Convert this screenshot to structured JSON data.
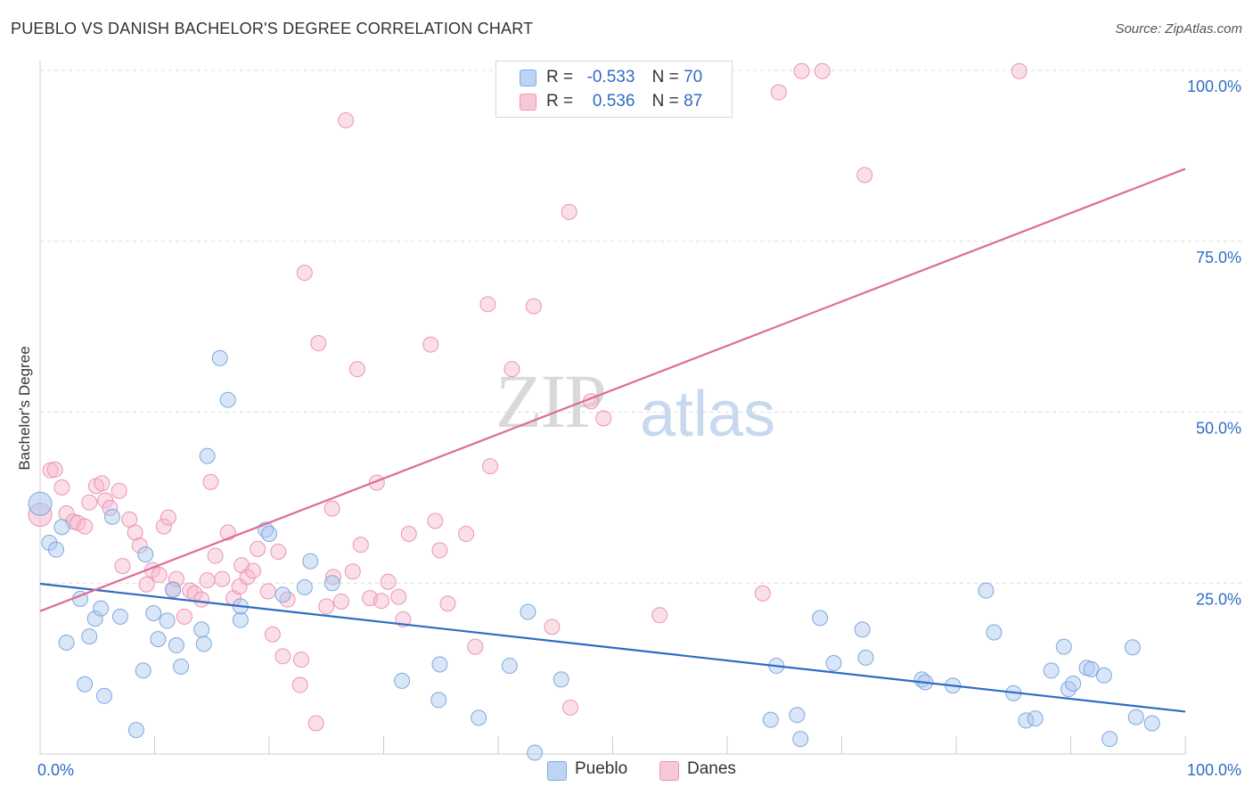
{
  "title": "PUEBLO VS DANISH BACHELOR'S DEGREE CORRELATION CHART",
  "source": "Source: ZipAtlas.com",
  "watermark": {
    "zip": "ZIP",
    "atlas": "atlas"
  },
  "colors": {
    "blue": "#2f6cc4",
    "blue_fill": "#a9c8f0",
    "pink": "#e06b95",
    "pink_fill": "#f6b8cc",
    "tick": "#2f6cc4"
  },
  "legend_top": {
    "rows": [
      {
        "r_label": "R =",
        "r_value": "-0.533",
        "n_label": "N =",
        "n_value": "70"
      },
      {
        "r_label": "R =",
        "r_value": "0.536",
        "n_label": "N =",
        "n_value": "87"
      }
    ]
  },
  "chart_data": {
    "type": "scatter",
    "title": "PUEBLO VS DANISH BACHELOR'S DEGREE CORRELATION CHART",
    "xlabel": "",
    "ylabel": "Bachelor's Degree",
    "xlim": [
      0,
      100
    ],
    "ylim": [
      0,
      100
    ],
    "x_tick_labels": {
      "min": "0.0%",
      "max": "100.0%"
    },
    "y_ticks": [
      25,
      50,
      75,
      100
    ],
    "y_tick_labels": [
      "25.0%",
      "50.0%",
      "75.0%",
      "100.0%"
    ],
    "legend": [
      "Pueblo",
      "Danes"
    ],
    "series": [
      {
        "name": "Pueblo",
        "trend": {
          "x": [
            0,
            100
          ],
          "y": [
            24.9,
            6.2
          ]
        },
        "points": [
          [
            0.0,
            36.6
          ],
          [
            0.8,
            30.9
          ],
          [
            1.4,
            29.9
          ],
          [
            1.9,
            33.2
          ],
          [
            2.3,
            16.3
          ],
          [
            3.5,
            22.7
          ],
          [
            3.9,
            10.2
          ],
          [
            4.3,
            17.2
          ],
          [
            4.8,
            19.8
          ],
          [
            5.3,
            21.3
          ],
          [
            5.6,
            8.5
          ],
          [
            6.3,
            34.7
          ],
          [
            7.0,
            20.1
          ],
          [
            8.4,
            3.5
          ],
          [
            9.0,
            12.2
          ],
          [
            9.2,
            29.2
          ],
          [
            9.9,
            20.6
          ],
          [
            10.3,
            16.8
          ],
          [
            11.1,
            19.5
          ],
          [
            11.6,
            24.0
          ],
          [
            11.9,
            15.9
          ],
          [
            12.3,
            12.8
          ],
          [
            14.1,
            18.2
          ],
          [
            14.3,
            16.1
          ],
          [
            14.6,
            43.6
          ],
          [
            15.7,
            57.9
          ],
          [
            16.4,
            51.8
          ],
          [
            17.5,
            19.6
          ],
          [
            17.5,
            21.6
          ],
          [
            19.7,
            32.8
          ],
          [
            20.0,
            32.2
          ],
          [
            21.2,
            23.3
          ],
          [
            23.1,
            24.4
          ],
          [
            23.6,
            28.2
          ],
          [
            25.5,
            25.0
          ],
          [
            31.6,
            10.7
          ],
          [
            34.8,
            7.9
          ],
          [
            34.9,
            13.1
          ],
          [
            38.3,
            5.3
          ],
          [
            41.0,
            12.9
          ],
          [
            42.6,
            20.8
          ],
          [
            43.2,
            0.2
          ],
          [
            45.5,
            10.9
          ],
          [
            63.8,
            5.0
          ],
          [
            64.3,
            12.9
          ],
          [
            66.1,
            5.7
          ],
          [
            66.4,
            2.2
          ],
          [
            68.1,
            19.9
          ],
          [
            69.3,
            13.3
          ],
          [
            71.8,
            18.2
          ],
          [
            72.1,
            14.1
          ],
          [
            77.0,
            10.9
          ],
          [
            77.3,
            10.5
          ],
          [
            79.7,
            10.0
          ],
          [
            82.6,
            23.9
          ],
          [
            83.3,
            17.8
          ],
          [
            85.0,
            8.9
          ],
          [
            86.1,
            4.9
          ],
          [
            86.9,
            5.2
          ],
          [
            88.3,
            12.2
          ],
          [
            89.4,
            15.7
          ],
          [
            89.8,
            9.5
          ],
          [
            90.2,
            10.3
          ],
          [
            91.4,
            12.6
          ],
          [
            91.8,
            12.4
          ],
          [
            92.9,
            11.5
          ],
          [
            93.4,
            2.2
          ],
          [
            95.4,
            15.6
          ],
          [
            95.7,
            5.4
          ],
          [
            97.1,
            4.5
          ]
        ]
      },
      {
        "name": "Danes",
        "trend": {
          "x": [
            0,
            100
          ],
          "y": [
            20.9,
            85.6
          ]
        },
        "points": [
          [
            0.0,
            35.0
          ],
          [
            0.9,
            41.5
          ],
          [
            1.3,
            41.6
          ],
          [
            1.9,
            39.0
          ],
          [
            2.3,
            35.2
          ],
          [
            2.9,
            34.0
          ],
          [
            3.3,
            33.8
          ],
          [
            3.9,
            33.3
          ],
          [
            4.3,
            36.8
          ],
          [
            4.9,
            39.2
          ],
          [
            5.4,
            39.6
          ],
          [
            5.7,
            37.1
          ],
          [
            6.1,
            36.0
          ],
          [
            6.9,
            38.5
          ],
          [
            7.2,
            27.5
          ],
          [
            7.8,
            34.3
          ],
          [
            8.3,
            32.4
          ],
          [
            8.7,
            30.5
          ],
          [
            9.3,
            24.8
          ],
          [
            9.8,
            26.9
          ],
          [
            10.4,
            26.2
          ],
          [
            10.8,
            33.3
          ],
          [
            11.2,
            34.6
          ],
          [
            11.6,
            24.1
          ],
          [
            11.9,
            25.6
          ],
          [
            12.6,
            20.1
          ],
          [
            13.1,
            23.9
          ],
          [
            13.5,
            23.5
          ],
          [
            14.1,
            22.6
          ],
          [
            14.6,
            25.4
          ],
          [
            14.9,
            39.8
          ],
          [
            15.3,
            29.0
          ],
          [
            15.9,
            25.6
          ],
          [
            16.4,
            32.4
          ],
          [
            16.9,
            22.8
          ],
          [
            17.4,
            24.5
          ],
          [
            17.6,
            27.6
          ],
          [
            18.1,
            25.9
          ],
          [
            18.6,
            26.8
          ],
          [
            19.0,
            30.0
          ],
          [
            19.9,
            23.8
          ],
          [
            20.3,
            17.5
          ],
          [
            20.8,
            29.6
          ],
          [
            21.2,
            14.3
          ],
          [
            21.6,
            22.6
          ],
          [
            22.7,
            10.1
          ],
          [
            22.8,
            13.8
          ],
          [
            23.1,
            70.4
          ],
          [
            24.1,
            4.5
          ],
          [
            24.3,
            60.1
          ],
          [
            25.0,
            21.6
          ],
          [
            25.5,
            35.9
          ],
          [
            25.6,
            25.9
          ],
          [
            26.3,
            22.3
          ],
          [
            26.7,
            92.7
          ],
          [
            27.3,
            26.7
          ],
          [
            27.7,
            56.3
          ],
          [
            28.0,
            30.6
          ],
          [
            28.8,
            22.8
          ],
          [
            29.4,
            39.7
          ],
          [
            29.8,
            22.4
          ],
          [
            30.4,
            25.2
          ],
          [
            31.3,
            23.0
          ],
          [
            31.7,
            19.7
          ],
          [
            32.2,
            32.2
          ],
          [
            34.1,
            59.9
          ],
          [
            34.5,
            34.1
          ],
          [
            34.9,
            29.8
          ],
          [
            35.6,
            22.0
          ],
          [
            37.2,
            32.2
          ],
          [
            38.0,
            15.7
          ],
          [
            39.3,
            42.1
          ],
          [
            39.1,
            65.8
          ],
          [
            41.2,
            56.3
          ],
          [
            43.1,
            65.5
          ],
          [
            44.7,
            18.6
          ],
          [
            46.3,
            6.8
          ],
          [
            46.2,
            79.3
          ],
          [
            48.1,
            51.6
          ],
          [
            49.2,
            49.1
          ],
          [
            54.1,
            20.3
          ],
          [
            63.1,
            23.5
          ],
          [
            64.5,
            96.8
          ],
          [
            66.5,
            99.9
          ],
          [
            68.3,
            99.9
          ],
          [
            72.0,
            84.7
          ],
          [
            85.5,
            99.9
          ]
        ]
      }
    ]
  }
}
